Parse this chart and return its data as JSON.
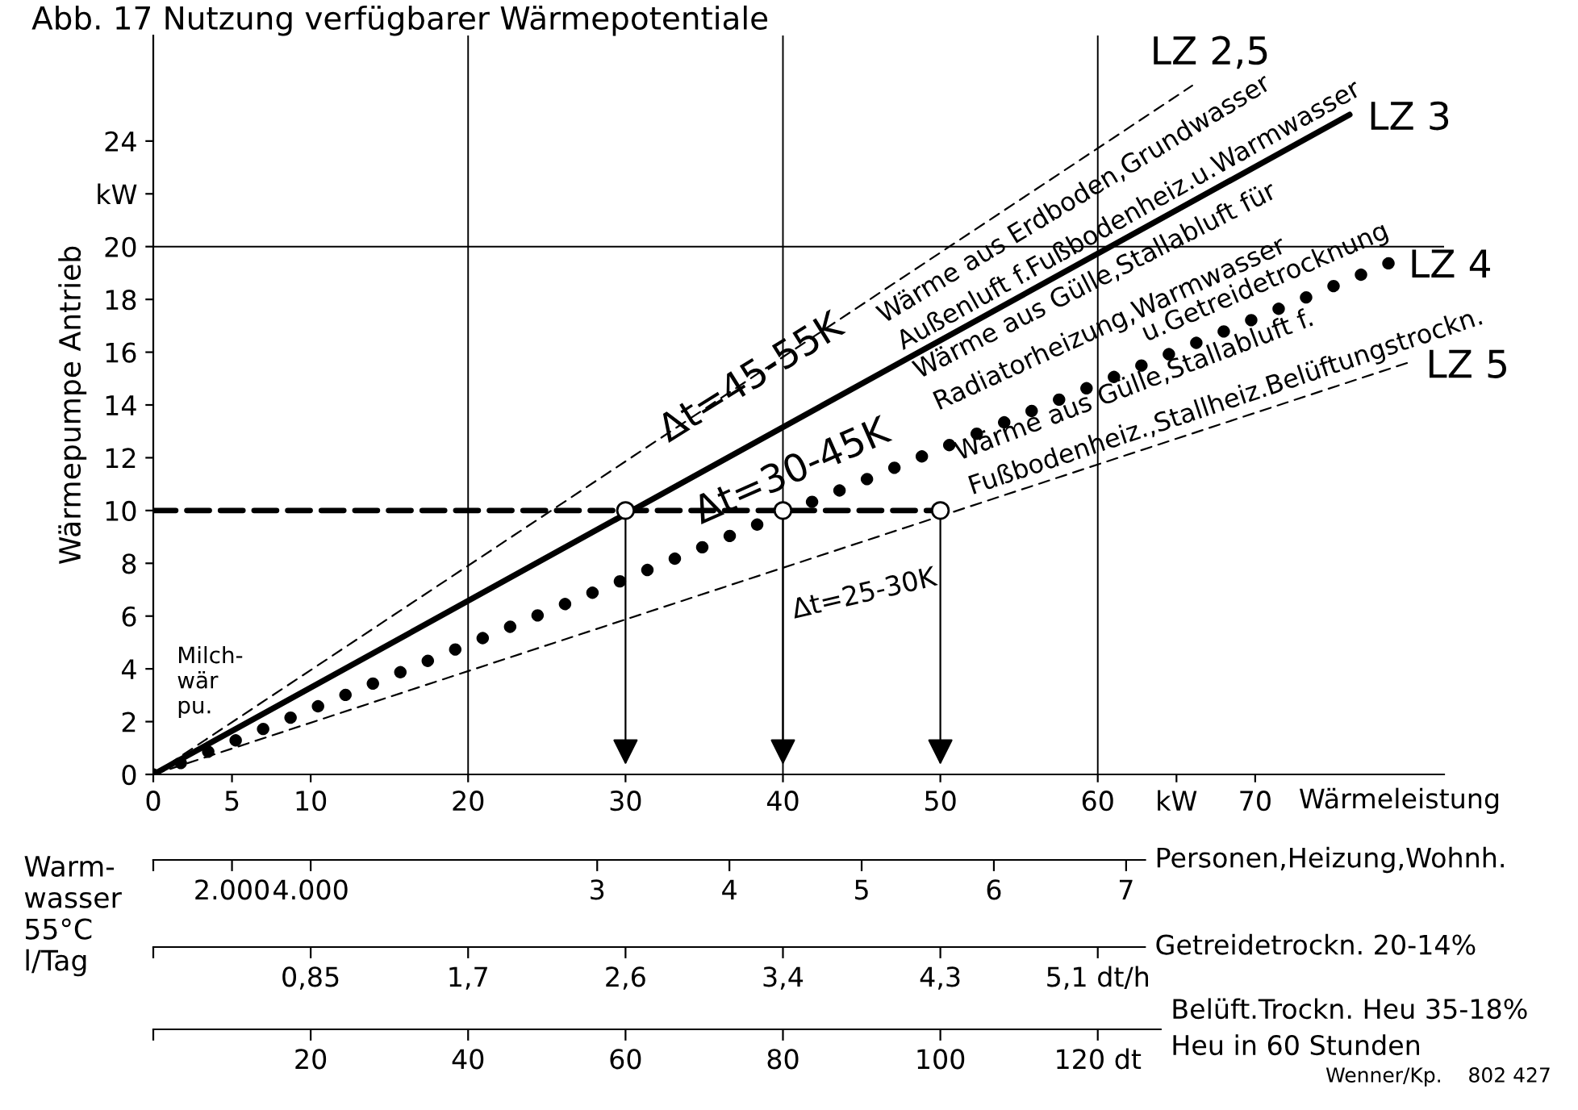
{
  "chart_data": [
    {
      "type": "line",
      "title": "Abb. 17 Nutzung verfügbarer Wärmepotentiale",
      "xlabel": "Wärmeleistung",
      "ylabel": "Wärmepumpe Antrieb",
      "xlim": [
        0,
        82
      ],
      "xticks": [
        0,
        5,
        10,
        20,
        30,
        40,
        50,
        60,
        {
          "value": 65,
          "label": "kW"
        },
        70
      ],
      "ylim": [
        0,
        28
      ],
      "yticks": [
        0,
        2,
        4,
        6,
        8,
        10,
        12,
        14,
        16,
        18,
        20,
        {
          "value": 22,
          "label": "kW"
        },
        24
      ],
      "series": [
        {
          "name": "LZ 2,5",
          "color": "#000000",
          "line_style": "dashed",
          "x": [
            0,
            66
          ],
          "values": [
            0,
            26.1
          ]
        },
        {
          "name": "LZ 3",
          "color": "#000000",
          "line_style": "solid",
          "x": [
            0,
            76
          ],
          "values": [
            0,
            25
          ]
        },
        {
          "name": "LZ 4",
          "color": "#000000",
          "line_style": "dotted",
          "x": [
            0,
            78.6
          ],
          "values": [
            0,
            19.4
          ]
        },
        {
          "name": "LZ 5",
          "color": "#000000",
          "line_style": "dashed",
          "x": [
            0,
            79.7
          ],
          "values": [
            0,
            15.6
          ]
        },
        {
          "color": "#000000",
          "line_style": "dashed",
          "x": [
            0,
            50
          ],
          "values": [
            10,
            10
          ]
        },
        {
          "color": "#000000",
          "type": "scatter",
          "marker": "circle",
          "x": [
            30,
            40,
            50
          ],
          "values": [
            10,
            10,
            10
          ]
        }
      ],
      "ref_lines": [
        {
          "axis": "x",
          "value": 20,
          "color": "#000000"
        },
        {
          "axis": "x",
          "value": 40,
          "color": "#000000"
        },
        {
          "axis": "x",
          "value": 60,
          "color": "#000000"
        },
        {
          "axis": "y",
          "value": 20,
          "color": "#000000"
        }
      ],
      "annotations": [
        "Δt=45-55K",
        "Wärme aus Erdboden,Grundwasser",
        "Außenluft f.Fußbodenheiz.u.Warmwasser",
        {
          "text": "Δt=30-45K",
          "x": 35,
          "y": 9.2
        },
        "Wärme aus Gülle,Stallabluft für",
        "Radiatorheizung,Warmwasser",
        "u.Getreidetrocknung",
        "Δt=25-30K",
        "Wärme aus Gülle,Stallabluft f.",
        "Fußbodenheiz.,Stallheiz.Belüftungstrockn.",
        "Milch-\nwär\npu."
      ]
    },
    {
      "type": "other",
      "xlabel": "Personen,Heizung,Wohnh.",
      "categories": [
        null,
        null,
        null,
        "3",
        "4",
        "5",
        "6",
        "7"
      ]
    },
    {
      "type": "other",
      "categories": [
        null,
        "2.000",
        "4.000"
      ],
      "annotations": [
        "Warm-\nwasser\n55°C\nl/Tag"
      ]
    },
    {
      "type": "other",
      "xlabel": "Getreidetrockn. 20-14%",
      "categories": [
        null,
        "0,85",
        "1,7",
        "2,6",
        "3,4",
        "4,3",
        "5,1 dt/h"
      ]
    },
    {
      "type": "other",
      "xlabel": "Belüft.Trockn. Heu 35-18%\nHeu in 60 Stunden",
      "categories": [
        null,
        "20",
        "40",
        "60",
        "80",
        "100",
        "120 dt"
      ],
      "annotations": [
        "Wenner/Kp.    802 427"
      ]
    }
  ]
}
